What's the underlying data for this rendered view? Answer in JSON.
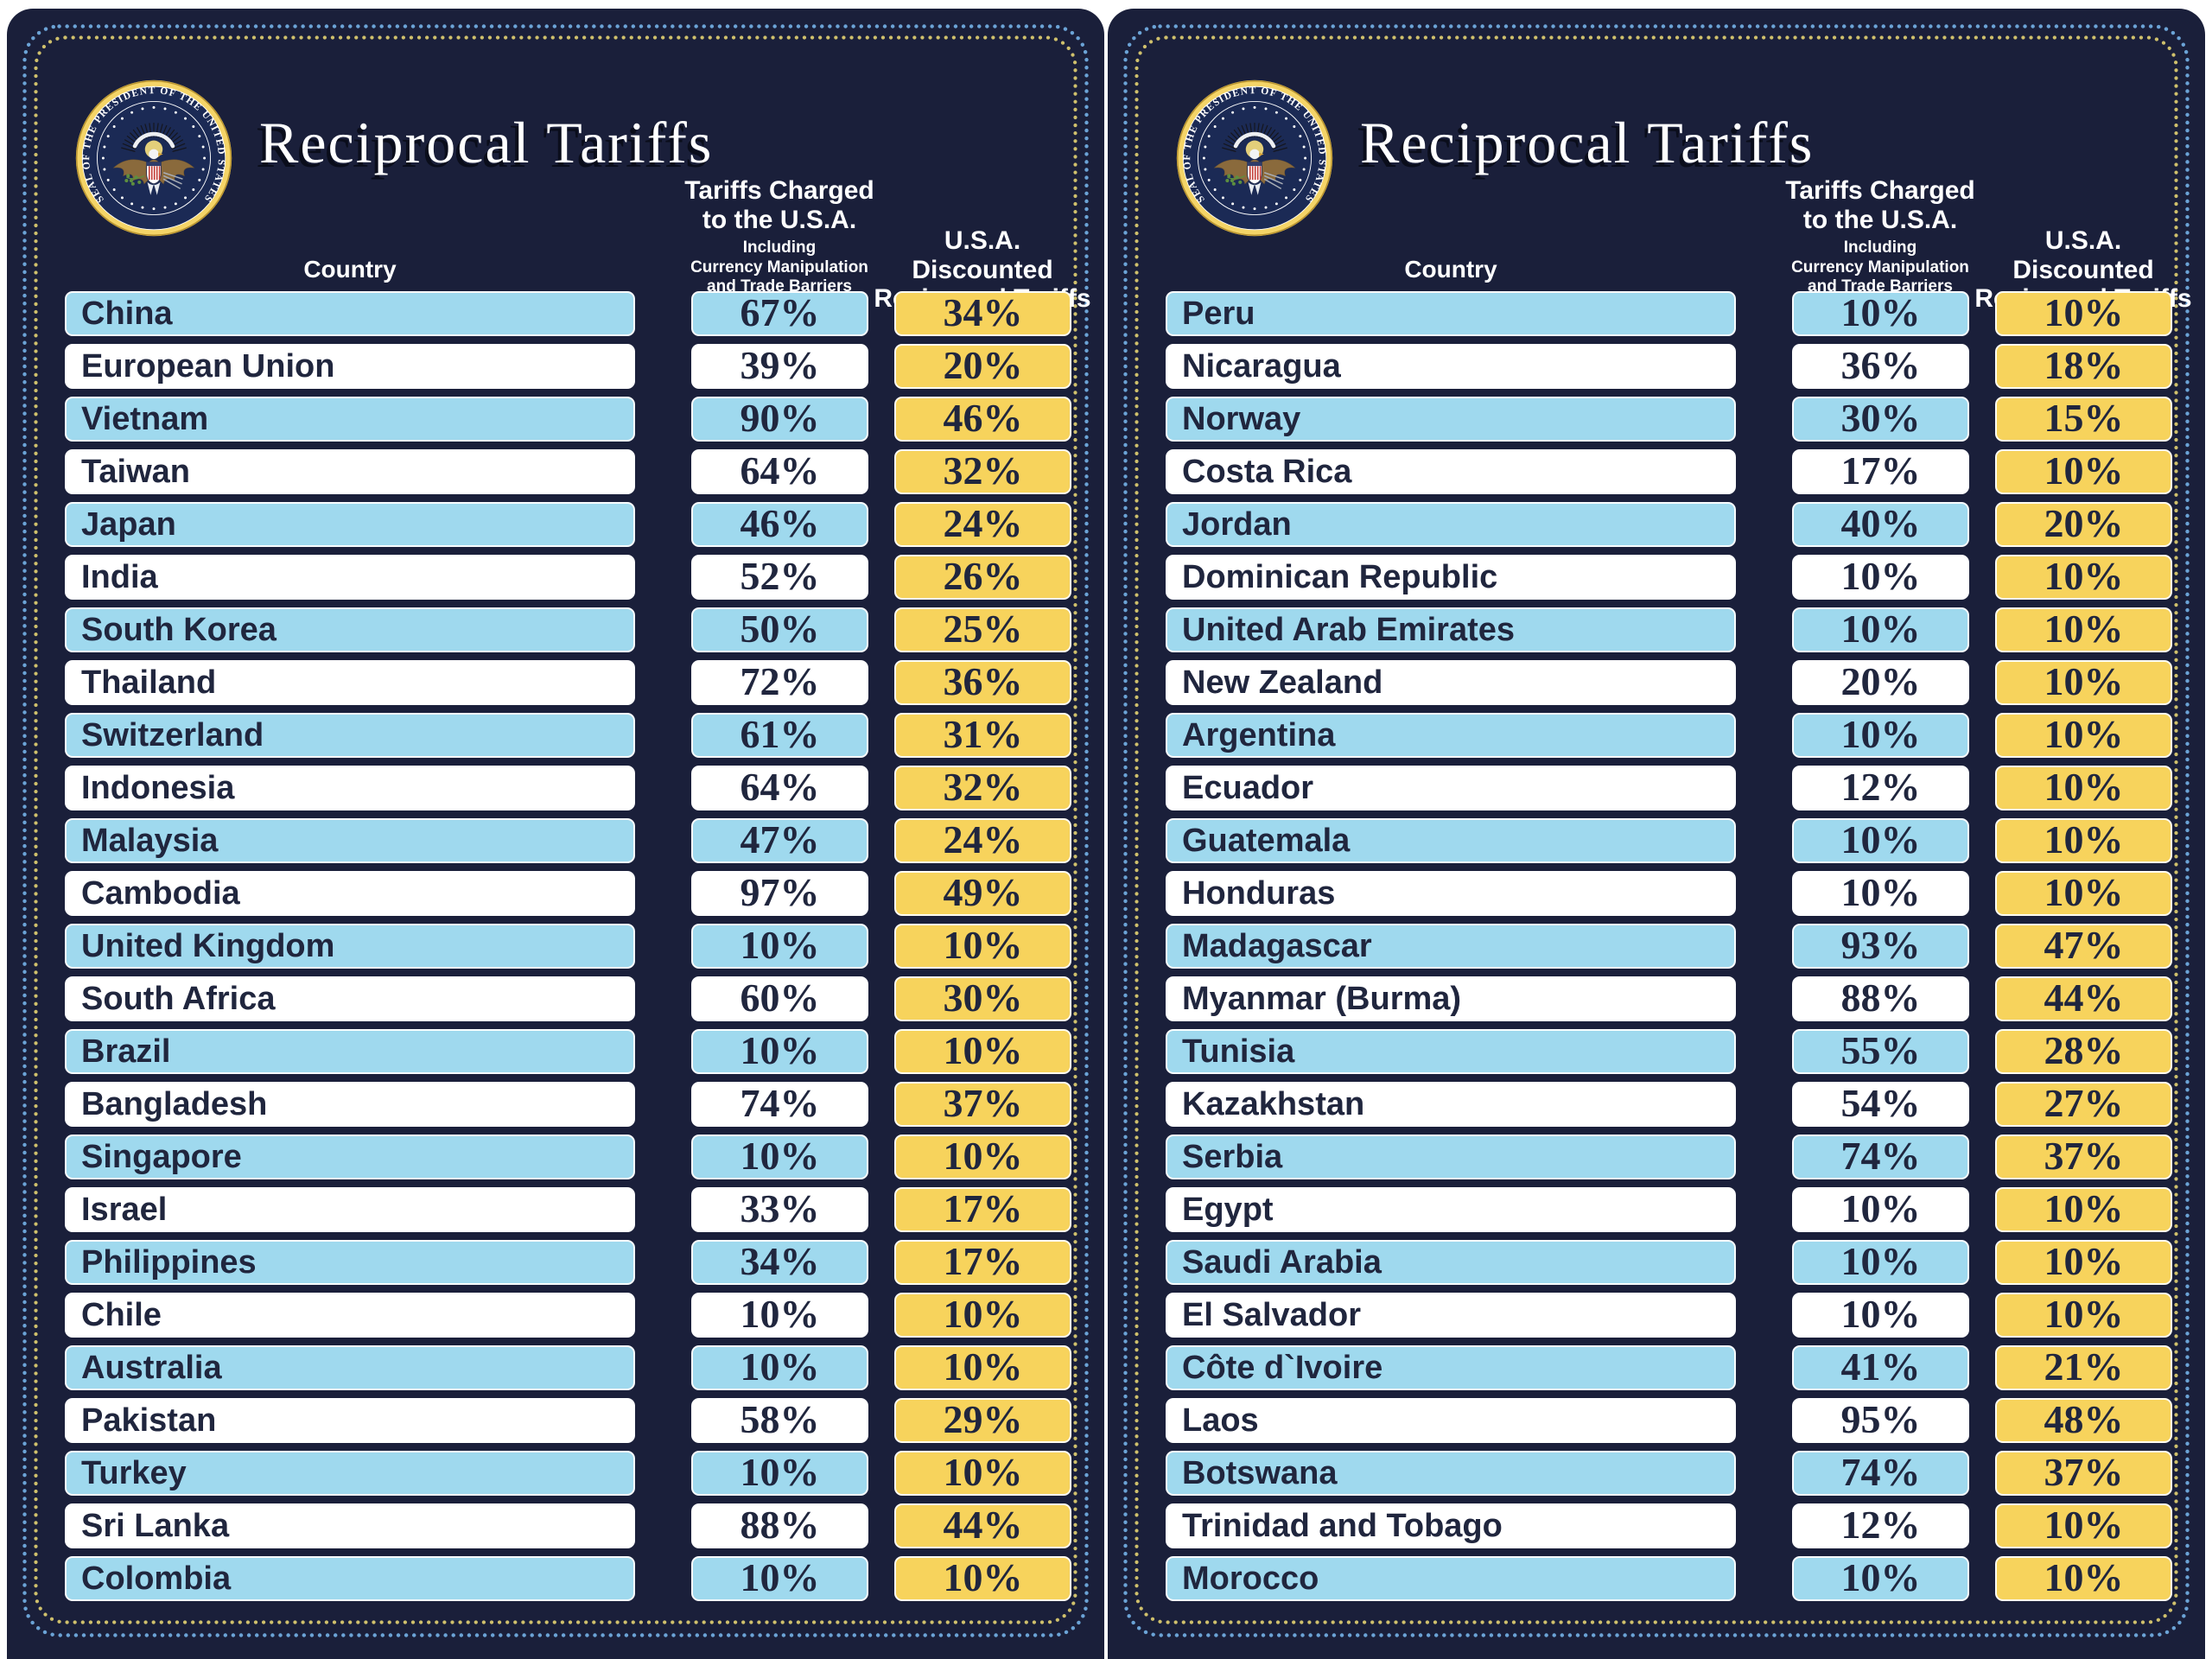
{
  "header": {
    "title": "Reciprocal Tariffs",
    "country_label": "Country",
    "charged_label": "Tariffs Charged\nto the U.S.A.",
    "charged_sublabel": "Including\nCurrency Manipulation\nand Trade Barriers",
    "discounted_label": "U.S.A. Discounted\nReciprocal Tariffs",
    "seal_text": "SEAL OF THE PRESIDENT OF THE UNITED STATES"
  },
  "colors": {
    "panel_background": "#1a1f3a",
    "row_blue": "#9fd9ee",
    "row_white": "#ffffff",
    "value_yellow": "#f7d35c",
    "dot_blue": "#6ba3d6",
    "dot_gold": "#cfc06c",
    "seal_gold": "#f4d467",
    "text_dark": "#20263e"
  },
  "panels": [
    {
      "side": "left",
      "rows": [
        {
          "country": "China",
          "charged": 67,
          "discounted": 34
        },
        {
          "country": "European Union",
          "charged": 39,
          "discounted": 20
        },
        {
          "country": "Vietnam",
          "charged": 90,
          "discounted": 46
        },
        {
          "country": "Taiwan",
          "charged": 64,
          "discounted": 32
        },
        {
          "country": "Japan",
          "charged": 46,
          "discounted": 24
        },
        {
          "country": "India",
          "charged": 52,
          "discounted": 26
        },
        {
          "country": "South Korea",
          "charged": 50,
          "discounted": 25
        },
        {
          "country": "Thailand",
          "charged": 72,
          "discounted": 36
        },
        {
          "country": "Switzerland",
          "charged": 61,
          "discounted": 31
        },
        {
          "country": "Indonesia",
          "charged": 64,
          "discounted": 32
        },
        {
          "country": "Malaysia",
          "charged": 47,
          "discounted": 24
        },
        {
          "country": "Cambodia",
          "charged": 97,
          "discounted": 49
        },
        {
          "country": "United Kingdom",
          "charged": 10,
          "discounted": 10
        },
        {
          "country": "South Africa",
          "charged": 60,
          "discounted": 30
        },
        {
          "country": "Brazil",
          "charged": 10,
          "discounted": 10
        },
        {
          "country": "Bangladesh",
          "charged": 74,
          "discounted": 37
        },
        {
          "country": "Singapore",
          "charged": 10,
          "discounted": 10
        },
        {
          "country": "Israel",
          "charged": 33,
          "discounted": 17
        },
        {
          "country": "Philippines",
          "charged": 34,
          "discounted": 17
        },
        {
          "country": "Chile",
          "charged": 10,
          "discounted": 10
        },
        {
          "country": "Australia",
          "charged": 10,
          "discounted": 10
        },
        {
          "country": "Pakistan",
          "charged": 58,
          "discounted": 29
        },
        {
          "country": "Turkey",
          "charged": 10,
          "discounted": 10
        },
        {
          "country": "Sri Lanka",
          "charged": 88,
          "discounted": 44
        },
        {
          "country": "Colombia",
          "charged": 10,
          "discounted": 10
        }
      ]
    },
    {
      "side": "right",
      "rows": [
        {
          "country": "Peru",
          "charged": 10,
          "discounted": 10
        },
        {
          "country": "Nicaragua",
          "charged": 36,
          "discounted": 18
        },
        {
          "country": "Norway",
          "charged": 30,
          "discounted": 15
        },
        {
          "country": "Costa Rica",
          "charged": 17,
          "discounted": 10
        },
        {
          "country": "Jordan",
          "charged": 40,
          "discounted": 20
        },
        {
          "country": "Dominican Republic",
          "charged": 10,
          "discounted": 10
        },
        {
          "country": "United Arab Emirates",
          "charged": 10,
          "discounted": 10
        },
        {
          "country": "New Zealand",
          "charged": 20,
          "discounted": 10
        },
        {
          "country": "Argentina",
          "charged": 10,
          "discounted": 10
        },
        {
          "country": "Ecuador",
          "charged": 12,
          "discounted": 10
        },
        {
          "country": "Guatemala",
          "charged": 10,
          "discounted": 10
        },
        {
          "country": "Honduras",
          "charged": 10,
          "discounted": 10
        },
        {
          "country": "Madagascar",
          "charged": 93,
          "discounted": 47
        },
        {
          "country": "Myanmar (Burma)",
          "charged": 88,
          "discounted": 44
        },
        {
          "country": "Tunisia",
          "charged": 55,
          "discounted": 28
        },
        {
          "country": "Kazakhstan",
          "charged": 54,
          "discounted": 27
        },
        {
          "country": "Serbia",
          "charged": 74,
          "discounted": 37
        },
        {
          "country": "Egypt",
          "charged": 10,
          "discounted": 10
        },
        {
          "country": "Saudi Arabia",
          "charged": 10,
          "discounted": 10
        },
        {
          "country": "El Salvador",
          "charged": 10,
          "discounted": 10
        },
        {
          "country": "Côte d`Ivoire",
          "charged": 41,
          "discounted": 21
        },
        {
          "country": "Laos",
          "charged": 95,
          "discounted": 48
        },
        {
          "country": "Botswana",
          "charged": 74,
          "discounted": 37
        },
        {
          "country": "Trinidad and Tobago",
          "charged": 12,
          "discounted": 10
        },
        {
          "country": "Morocco",
          "charged": 10,
          "discounted": 10
        }
      ]
    }
  ],
  "chart_data": [
    {
      "type": "table",
      "title": "Reciprocal Tariffs",
      "columns": [
        "Country",
        "Tariffs Charged to the U.S.A. Including Currency Manipulation and Trade Barriers",
        "U.S.A. Discounted Reciprocal Tariffs"
      ],
      "rows": [
        [
          "China",
          67,
          34
        ],
        [
          "European Union",
          39,
          20
        ],
        [
          "Vietnam",
          90,
          46
        ],
        [
          "Taiwan",
          64,
          32
        ],
        [
          "Japan",
          46,
          24
        ],
        [
          "India",
          52,
          26
        ],
        [
          "South Korea",
          50,
          25
        ],
        [
          "Thailand",
          72,
          36
        ],
        [
          "Switzerland",
          61,
          31
        ],
        [
          "Indonesia",
          64,
          32
        ],
        [
          "Malaysia",
          47,
          24
        ],
        [
          "Cambodia",
          97,
          49
        ],
        [
          "United Kingdom",
          10,
          10
        ],
        [
          "South Africa",
          60,
          30
        ],
        [
          "Brazil",
          10,
          10
        ],
        [
          "Bangladesh",
          74,
          37
        ],
        [
          "Singapore",
          10,
          10
        ],
        [
          "Israel",
          33,
          17
        ],
        [
          "Philippines",
          34,
          17
        ],
        [
          "Chile",
          10,
          10
        ],
        [
          "Australia",
          10,
          10
        ],
        [
          "Pakistan",
          58,
          29
        ],
        [
          "Turkey",
          10,
          10
        ],
        [
          "Sri Lanka",
          88,
          44
        ],
        [
          "Colombia",
          10,
          10
        ]
      ],
      "units": "percent"
    },
    {
      "type": "table",
      "title": "Reciprocal Tariffs",
      "columns": [
        "Country",
        "Tariffs Charged to the U.S.A. Including Currency Manipulation and Trade Barriers",
        "U.S.A. Discounted Reciprocal Tariffs"
      ],
      "rows": [
        [
          "Peru",
          10,
          10
        ],
        [
          "Nicaragua",
          36,
          18
        ],
        [
          "Norway",
          30,
          15
        ],
        [
          "Costa Rica",
          17,
          10
        ],
        [
          "Jordan",
          40,
          20
        ],
        [
          "Dominican Republic",
          10,
          10
        ],
        [
          "United Arab Emirates",
          10,
          10
        ],
        [
          "New Zealand",
          20,
          10
        ],
        [
          "Argentina",
          10,
          10
        ],
        [
          "Ecuador",
          12,
          10
        ],
        [
          "Guatemala",
          10,
          10
        ],
        [
          "Honduras",
          10,
          10
        ],
        [
          "Madagascar",
          93,
          47
        ],
        [
          "Myanmar (Burma)",
          88,
          44
        ],
        [
          "Tunisia",
          55,
          28
        ],
        [
          "Kazakhstan",
          54,
          27
        ],
        [
          "Serbia",
          74,
          37
        ],
        [
          "Egypt",
          10,
          10
        ],
        [
          "Saudi Arabia",
          10,
          10
        ],
        [
          "El Salvador",
          10,
          10
        ],
        [
          "Côte d`Ivoire",
          41,
          21
        ],
        [
          "Laos",
          95,
          48
        ],
        [
          "Botswana",
          74,
          37
        ],
        [
          "Trinidad and Tobago",
          12,
          10
        ],
        [
          "Morocco",
          10,
          10
        ]
      ],
      "units": "percent"
    }
  ]
}
